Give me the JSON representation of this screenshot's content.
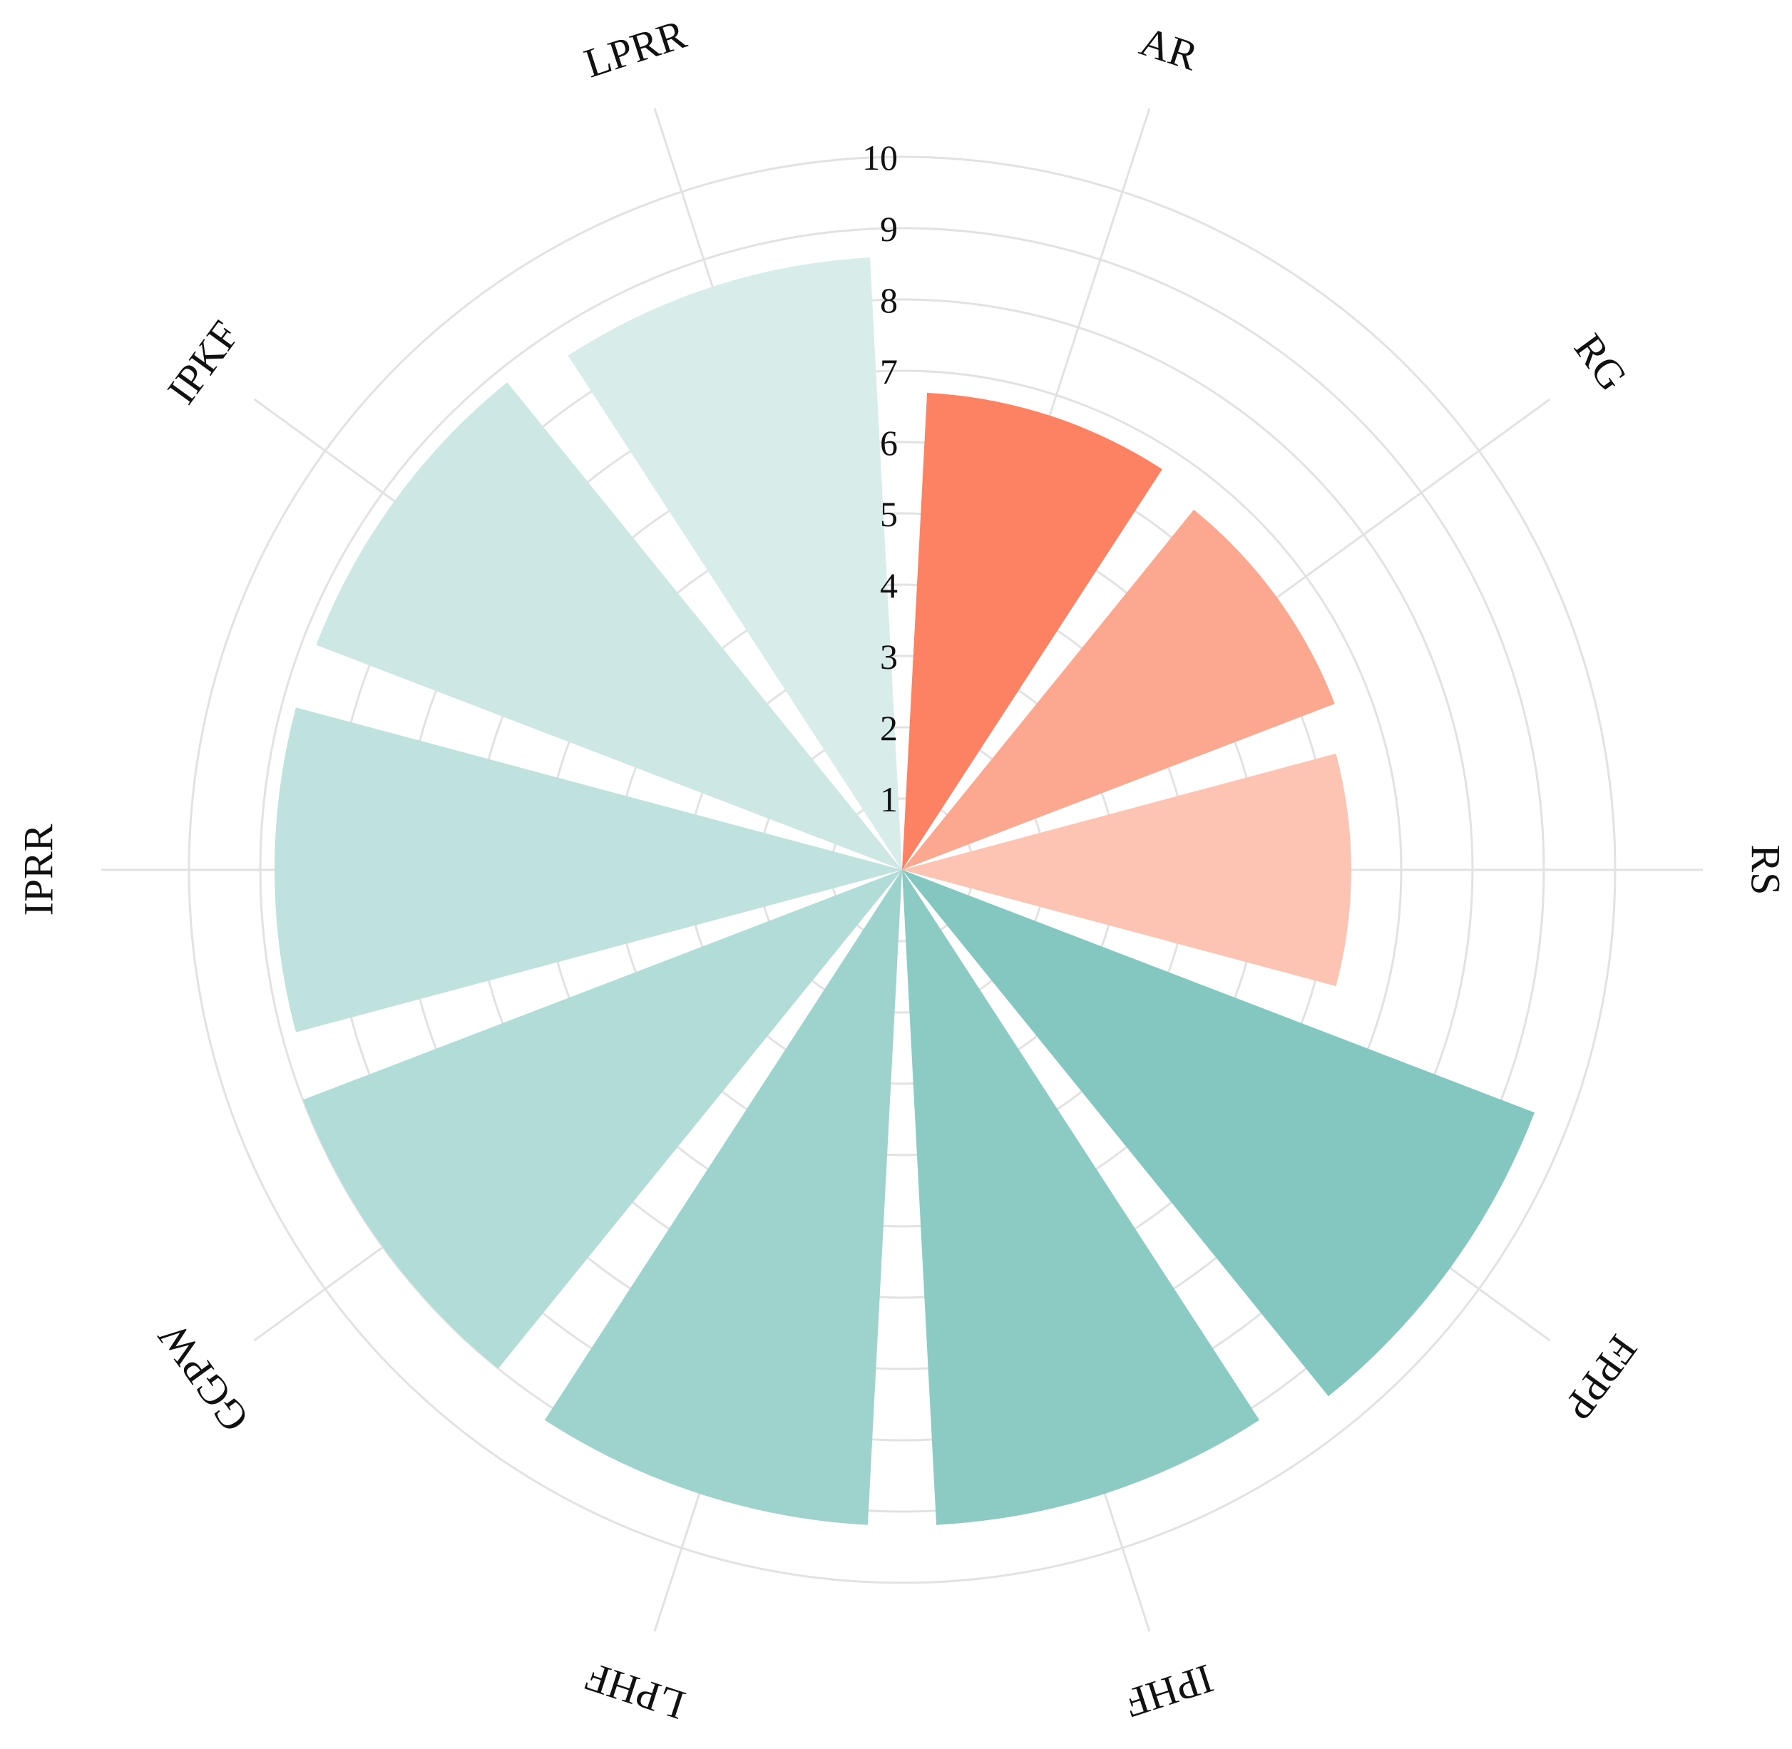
{
  "chart_data": {
    "type": "polar-bar",
    "categories": [
      "AR",
      "RG",
      "RS",
      "FPPP",
      "IPHF",
      "LPHF",
      "GGPW",
      "IPRR",
      "IPKF",
      "LPRR"
    ],
    "values": [
      6.7,
      6.5,
      6.3,
      9.5,
      9.2,
      9.2,
      9.0,
      8.8,
      8.8,
      8.6
    ],
    "colors": [
      "#fc8263",
      "#fca891",
      "#fdc4b3",
      "#84c7c1",
      "#8ccac4",
      "#9dd2cd",
      "#b1dcd8",
      "#bfe2df",
      "#cde7e4",
      "#d8ecea"
    ],
    "rlim": [
      0,
      10
    ],
    "r_ticks": [
      "1",
      "2",
      "3",
      "4",
      "5",
      "6",
      "7",
      "8",
      "9",
      "10"
    ],
    "grid": true,
    "title": "",
    "legend": "none"
  }
}
